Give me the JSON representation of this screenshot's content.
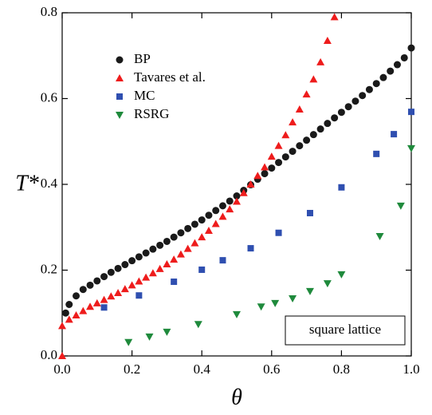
{
  "chart_data": {
    "type": "scatter",
    "xlabel": "θ",
    "ylabel": "T*",
    "annotation": "square lattice",
    "legend": "upper left",
    "xlim": [
      0,
      1
    ],
    "ylim": [
      0,
      0.8
    ],
    "xticks": [
      {
        "value": 0,
        "label": "0.0"
      },
      {
        "value": 0.2,
        "label": "0.2"
      },
      {
        "value": 0.4,
        "label": "0.4"
      },
      {
        "value": 0.6,
        "label": "0.6"
      },
      {
        "value": 0.8,
        "label": "0.8"
      },
      {
        "value": 1,
        "label": "1.0"
      }
    ],
    "yticks": [
      {
        "value": 0,
        "label": "0.0"
      },
      {
        "value": 0.2,
        "label": "0.2"
      },
      {
        "value": 0.4,
        "label": "0.4"
      },
      {
        "value": 0.6,
        "label": "0.6"
      },
      {
        "value": 0.8,
        "label": "0.8"
      }
    ],
    "series": [
      {
        "name": "BP",
        "color": "#1a1a1a",
        "marker": "circle",
        "x": [
          0.01,
          0.02,
          0.04,
          0.06,
          0.08,
          0.1,
          0.12,
          0.14,
          0.16,
          0.18,
          0.2,
          0.22,
          0.24,
          0.26,
          0.28,
          0.3,
          0.32,
          0.34,
          0.36,
          0.38,
          0.4,
          0.42,
          0.44,
          0.46,
          0.48,
          0.5,
          0.52,
          0.54,
          0.56,
          0.58,
          0.6,
          0.62,
          0.64,
          0.66,
          0.68,
          0.7,
          0.72,
          0.74,
          0.76,
          0.78,
          0.8,
          0.82,
          0.84,
          0.86,
          0.88,
          0.9,
          0.92,
          0.94,
          0.96,
          0.98,
          1.0
        ],
        "values": [
          0.1,
          0.12,
          0.14,
          0.155,
          0.165,
          0.175,
          0.185,
          0.195,
          0.204,
          0.213,
          0.222,
          0.231,
          0.24,
          0.249,
          0.258,
          0.267,
          0.277,
          0.287,
          0.297,
          0.307,
          0.317,
          0.328,
          0.339,
          0.35,
          0.361,
          0.373,
          0.386,
          0.399,
          0.412,
          0.425,
          0.438,
          0.451,
          0.464,
          0.477,
          0.49,
          0.503,
          0.516,
          0.529,
          0.542,
          0.555,
          0.568,
          0.581,
          0.594,
          0.607,
          0.621,
          0.635,
          0.649,
          0.664,
          0.679,
          0.695,
          0.718
        ]
      },
      {
        "name": "Tavares et al.",
        "color": "#ee1c1c",
        "marker": "triangle",
        "x": [
          0,
          0,
          0.02,
          0.04,
          0.06,
          0.08,
          0.1,
          0.12,
          0.14,
          0.16,
          0.18,
          0.2,
          0.22,
          0.24,
          0.26,
          0.28,
          0.3,
          0.32,
          0.34,
          0.36,
          0.38,
          0.4,
          0.42,
          0.44,
          0.46,
          0.48,
          0.5,
          0.52,
          0.54,
          0.56,
          0.58,
          0.6,
          0.62,
          0.64,
          0.66,
          0.68,
          0.7,
          0.72,
          0.74,
          0.76,
          0.78
        ],
        "values": [
          0,
          0.07,
          0.085,
          0.095,
          0.105,
          0.115,
          0.123,
          0.131,
          0.139,
          0.147,
          0.156,
          0.165,
          0.174,
          0.183,
          0.193,
          0.203,
          0.214,
          0.225,
          0.237,
          0.25,
          0.263,
          0.277,
          0.292,
          0.308,
          0.325,
          0.342,
          0.36,
          0.38,
          0.4,
          0.42,
          0.44,
          0.465,
          0.49,
          0.515,
          0.545,
          0.575,
          0.61,
          0.645,
          0.685,
          0.735,
          0.79
        ]
      },
      {
        "name": "MC",
        "color": "#2f4fb0",
        "marker": "square",
        "x": [
          0.12,
          0.22,
          0.32,
          0.4,
          0.46,
          0.54,
          0.62,
          0.71,
          0.8,
          0.9,
          0.95,
          1.0
        ],
        "values": [
          0.113,
          0.141,
          0.173,
          0.201,
          0.223,
          0.251,
          0.287,
          0.333,
          0.393,
          0.471,
          0.517,
          0.569
        ]
      },
      {
        "name": "RSRG",
        "color": "#1f8a3c",
        "marker": "triangle-down",
        "x": [
          0.19,
          0.25,
          0.3,
          0.39,
          0.5,
          0.57,
          0.61,
          0.66,
          0.71,
          0.76,
          0.8,
          0.91,
          0.97,
          1.0
        ],
        "values": [
          0.032,
          0.045,
          0.056,
          0.074,
          0.097,
          0.115,
          0.123,
          0.134,
          0.151,
          0.169,
          0.19,
          0.279,
          0.35,
          0.484
        ]
      }
    ]
  }
}
